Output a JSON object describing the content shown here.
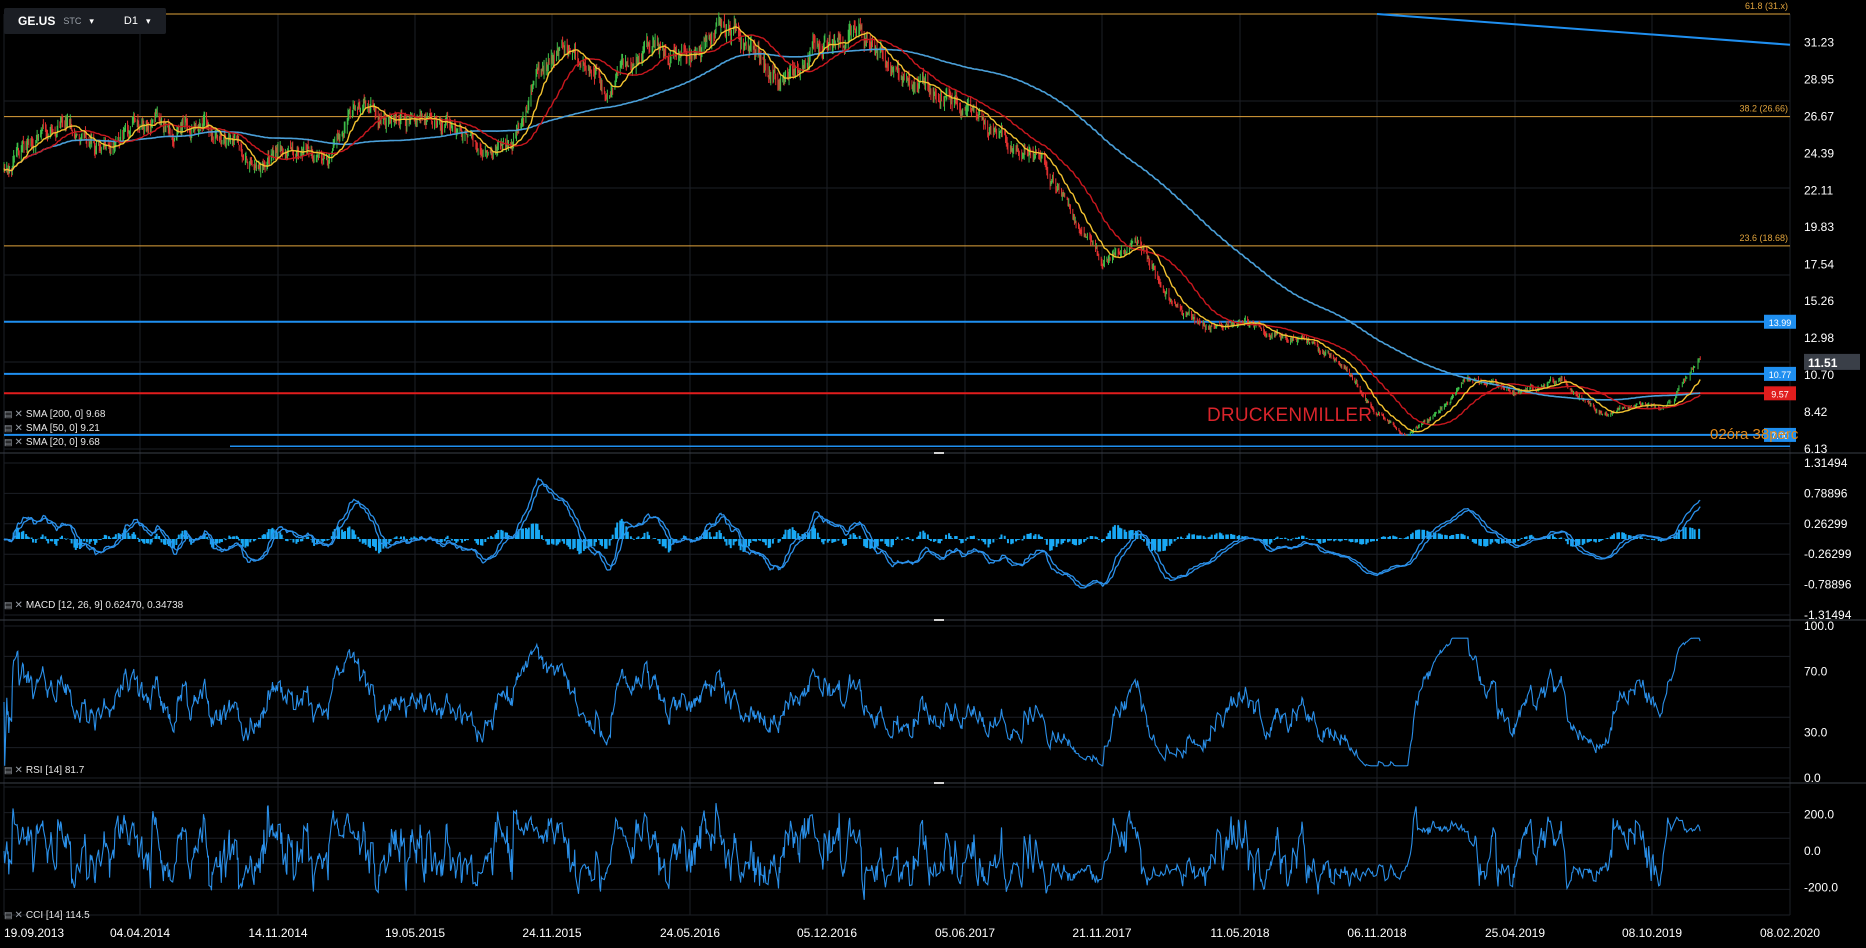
{
  "toolbar": {
    "symbol": "GE.US",
    "type": "STC",
    "timeframe": "D1"
  },
  "annotation": {
    "text": "DRUCKENMILLER",
    "countdown": "02óra 38perc"
  },
  "colors": {
    "background": "#000000",
    "grid": "#1c1f26",
    "axis_text": "#ffffff",
    "candle_up": "#3ec04a",
    "candle_down": "#e23030",
    "sma200": "#4a9fd8",
    "sma50": "#c8171e",
    "sma20": "#f2c230",
    "fib": "#e0a33c",
    "hline_blue": "#1f8ff0",
    "hline_red": "#e11d1d",
    "indicator": "#2a8fe8",
    "histogram": "#19a9f5"
  },
  "legend": {
    "sma200": "SMA [200, 0] 9.68",
    "sma50": "SMA [50, 0] 9.21",
    "sma20": "SMA [20, 0] 9.68",
    "macd": "MACD [12, 26, 9] 0.62470, 0.34738",
    "rsi": "RSI [14] 81.7",
    "cci": "CCI [14] 114.5"
  },
  "chart_data": [
    {
      "type": "candlestick",
      "symbol": "GE.US",
      "x_dates": [
        "19.09.2013",
        "04.04.2014",
        "14.11.2014",
        "19.05.2015",
        "24.11.2015",
        "24.05.2016",
        "05.12.2016",
        "05.06.2017",
        "21.11.2017",
        "11.05.2018",
        "06.11.2018",
        "25.04.2019",
        "08.10.2019",
        "08.02.2020"
      ],
      "y_ticks": [
        31.23,
        28.95,
        26.67,
        24.39,
        22.11,
        19.83,
        17.54,
        15.26,
        12.98,
        10.7,
        8.42,
        6.13
      ],
      "ylim": [
        6.13,
        33.0
      ],
      "price_path": [
        [
          "2013-09-19",
          23.6
        ],
        [
          "2013-12-15",
          26.4
        ],
        [
          "2014-02-01",
          24.6
        ],
        [
          "2014-04-04",
          26.0
        ],
        [
          "2014-07-15",
          25.9
        ],
        [
          "2014-10-20",
          23.5
        ],
        [
          "2014-11-14",
          24.8
        ],
        [
          "2015-01-10",
          23.9
        ],
        [
          "2015-03-01",
          27.2
        ],
        [
          "2015-04-15",
          26.4
        ],
        [
          "2015-06-20",
          26.7
        ],
        [
          "2015-08-20",
          24.3
        ],
        [
          "2015-10-01",
          25.0
        ],
        [
          "2015-11-10",
          29.5
        ],
        [
          "2015-12-20",
          30.8
        ],
        [
          "2016-02-01",
          28.4
        ],
        [
          "2016-04-01",
          30.8
        ],
        [
          "2016-05-24",
          30.2
        ],
        [
          "2016-07-01",
          32.3
        ],
        [
          "2016-08-20",
          31.0
        ],
        [
          "2016-10-01",
          29.0
        ],
        [
          "2016-12-05",
          31.2
        ],
        [
          "2017-01-15",
          31.9
        ],
        [
          "2017-03-01",
          29.6
        ],
        [
          "2017-05-01",
          28.3
        ],
        [
          "2017-06-05",
          27.0
        ],
        [
          "2017-07-20",
          25.2
        ],
        [
          "2017-09-01",
          24.4
        ],
        [
          "2017-10-20",
          20.1
        ],
        [
          "2017-11-21",
          17.7
        ],
        [
          "2018-01-05",
          18.6
        ],
        [
          "2018-02-20",
          15.0
        ],
        [
          "2018-04-01",
          13.7
        ],
        [
          "2018-05-11",
          14.0
        ],
        [
          "2018-06-15",
          13.4
        ],
        [
          "2018-08-01",
          12.8
        ],
        [
          "2018-09-20",
          11.4
        ],
        [
          "2018-11-06",
          8.2
        ],
        [
          "2018-12-10",
          7.0
        ],
        [
          "2019-01-20",
          8.4
        ],
        [
          "2019-02-25",
          10.5
        ],
        [
          "2019-04-25",
          9.6
        ],
        [
          "2019-06-20",
          10.3
        ],
        [
          "2019-08-10",
          8.4
        ],
        [
          "2019-09-15",
          8.9
        ],
        [
          "2019-10-20",
          8.7
        ],
        [
          "2019-11-20",
          11.5
        ]
      ],
      "sma": [
        {
          "name": "SMA [200, 0]",
          "value": 9.68
        },
        {
          "name": "SMA [50, 0]",
          "value": 9.21
        },
        {
          "name": "SMA [20, 0]",
          "value": 9.68
        }
      ],
      "fib_levels": [
        {
          "label": "61.8 (31.x)",
          "value": 33.0
        },
        {
          "label": "38.2 (26.66)",
          "value": 26.66
        },
        {
          "label": "23.6 (18.68)",
          "value": 18.68
        }
      ],
      "horizontal_lines": [
        {
          "value": 13.99,
          "label": "13.99",
          "color": "blue"
        },
        {
          "value": 10.77,
          "label": "10.77",
          "color": "blue"
        },
        {
          "value": 9.57,
          "label": "9.57",
          "color": "red"
        },
        {
          "value": 7.0,
          "label": "7.00",
          "color": "blue"
        }
      ],
      "trendline": [
        [
          "2018-11-06",
          33.0
        ],
        [
          "2020-02-08",
          31.1
        ]
      ],
      "last_price": 11.51
    },
    {
      "type": "line",
      "name": "MACD [12, 26, 9]",
      "values": {
        "macd": 0.6247,
        "signal": 0.34738
      },
      "y_ticks": [
        1.31494,
        0.78896,
        0.26299,
        -0.26299,
        -0.78896,
        -1.31494
      ],
      "ylim": [
        -1.31494,
        1.31494
      ]
    },
    {
      "type": "line",
      "name": "RSI [14]",
      "value": 81.7,
      "y_ticks": [
        100.0,
        70.0,
        30.0,
        0.0
      ],
      "ylim": [
        0,
        100
      ]
    },
    {
      "type": "line",
      "name": "CCI [14]",
      "value": 114.5,
      "y_ticks": [
        200.0,
        0.0,
        -200.0
      ],
      "ylim": [
        -350,
        350
      ]
    }
  ]
}
